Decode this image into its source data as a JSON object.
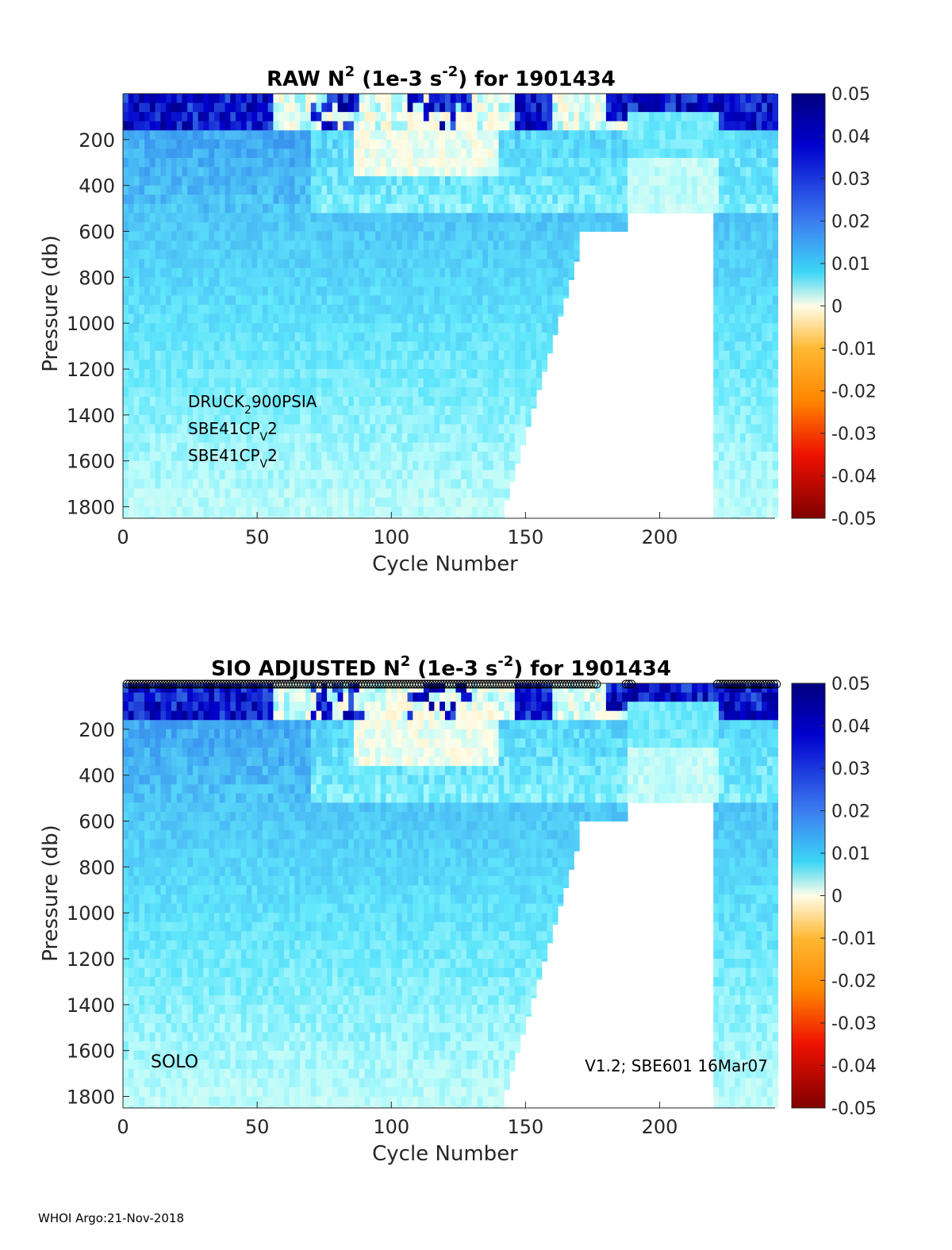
{
  "chart_data": [
    {
      "type": "heatmap",
      "title_prefix": "RAW N",
      "title_sup": "2",
      "title_mid": " (1e-3 s",
      "title_sup2": "-2",
      "title_suffix": ") for 1901434",
      "xlabel": "Cycle Number",
      "ylabel": "Pressure (db)",
      "xlim": [
        0,
        243
      ],
      "ylim": [
        0,
        1850
      ],
      "xticks": [
        "0",
        "50",
        "100",
        "150",
        "200"
      ],
      "xtick_values": [
        0,
        50,
        100,
        150,
        200
      ],
      "yticks": [
        "200",
        "400",
        "600",
        "800",
        "1000",
        "1200",
        "1400",
        "1600",
        "1800"
      ],
      "ytick_values": [
        200,
        400,
        600,
        800,
        1000,
        1200,
        1400,
        1600,
        1800
      ],
      "colorbar": {
        "range": [
          -0.05,
          0.05
        ],
        "ticks": [
          "0.05",
          "0.04",
          "0.03",
          "0.02",
          "0.01",
          "0",
          "-0.01",
          "-0.02",
          "-0.03",
          "-0.04",
          "-0.05"
        ]
      },
      "annotations": [
        {
          "base": "DRUCK",
          "sub": "2",
          "rest": "900PSIA"
        },
        {
          "base": "SBE41CP",
          "sub": "V",
          "rest": "2"
        },
        {
          "base": "SBE41CP",
          "sub": "V",
          "rest": "2"
        }
      ],
      "profile_depth_regimes": [
        {
          "cycles": [
            0,
            140
          ],
          "max_pressure": 1850
        },
        {
          "cycles": [
            140,
            170
          ],
          "max_pressure": "decreasing 1850 to 650"
        },
        {
          "cycles": [
            170,
            188
          ],
          "max_pressure": 600
        },
        {
          "cycles": [
            188,
            220
          ],
          "max_pressure": 520
        },
        {
          "cycles": [
            220,
            243
          ],
          "max_pressure": 1850
        }
      ],
      "qc_markers": false
    },
    {
      "type": "heatmap",
      "title_prefix": "SIO  ADJUSTED N",
      "title_sup": "2",
      "title_mid": " (1e-3 s",
      "title_sup2": "-2",
      "title_suffix": ") for 1901434",
      "xlabel": "Cycle Number",
      "ylabel": "Pressure (db)",
      "xlim": [
        0,
        243
      ],
      "ylim": [
        0,
        1850
      ],
      "xticks": [
        "0",
        "50",
        "100",
        "150",
        "200"
      ],
      "xtick_values": [
        0,
        50,
        100,
        150,
        200
      ],
      "yticks": [
        "200",
        "400",
        "600",
        "800",
        "1000",
        "1200",
        "1400",
        "1600",
        "1800"
      ],
      "ytick_values": [
        200,
        400,
        600,
        800,
        1000,
        1200,
        1400,
        1600,
        1800
      ],
      "colorbar": {
        "range": [
          -0.05,
          0.05
        ],
        "ticks": [
          "0.05",
          "0.04",
          "0.03",
          "0.02",
          "0.01",
          "0",
          "-0.01",
          "-0.02",
          "-0.03",
          "-0.04",
          "-0.05"
        ]
      },
      "left_label": "SOLO",
      "right_label": "V1.2; SBE601 16Mar07",
      "qc_markers": true
    }
  ],
  "footer": "WHOI Argo:21-Nov-2018"
}
